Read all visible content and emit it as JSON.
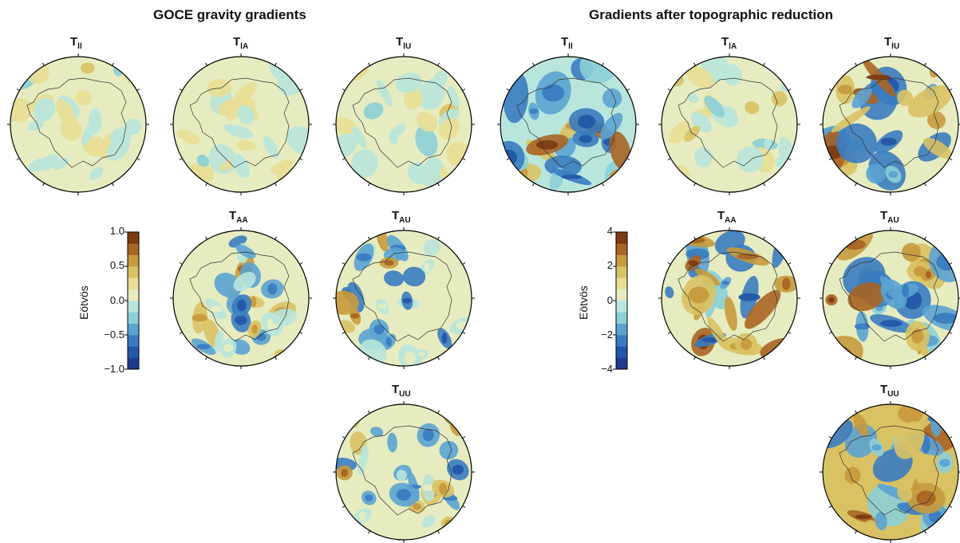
{
  "figure": {
    "left_title": "GOCE gravity gradients",
    "right_title": "Gradients after topographic reduction"
  },
  "chart_data": {
    "type": "heatmap",
    "panels": [
      {
        "name": "GOCE gravity gradients",
        "colorbar": {
          "label": "Eötvös",
          "range": [
            -1.0,
            1.0
          ],
          "ticks": [
            "1.0",
            "0.5",
            "0.0",
            "−0.5",
            "−1.0"
          ]
        },
        "components": [
          {
            "main": "T",
            "sub": "ll"
          },
          {
            "main": "T",
            "sub": "lA"
          },
          {
            "main": "T",
            "sub": "lU"
          },
          {
            "main": "T",
            "sub": "AA"
          },
          {
            "main": "T",
            "sub": "AU"
          },
          {
            "main": "T",
            "sub": "UU"
          }
        ]
      },
      {
        "name": "Gradients after topographic reduction",
        "colorbar": {
          "label": "Eötvös",
          "range": [
            -4,
            4
          ],
          "ticks": [
            "4",
            "2",
            "0",
            "−2",
            "−4"
          ]
        },
        "components": [
          {
            "main": "T",
            "sub": "ll"
          },
          {
            "main": "T",
            "sub": "lA"
          },
          {
            "main": "T",
            "sub": "lU"
          },
          {
            "main": "T",
            "sub": "AA"
          },
          {
            "main": "T",
            "sub": "AU"
          },
          {
            "main": "T",
            "sub": "UU"
          }
        ]
      }
    ],
    "colormap": [
      "#1f3a8a",
      "#2457a8",
      "#3a7cc1",
      "#5ba3d1",
      "#8ccfd6",
      "#b8e6dc",
      "#e6ecbf",
      "#e8de95",
      "#d9c264",
      "#c79a3d",
      "#a86523",
      "#7e3a12"
    ],
    "projection": "polar stereographic (south pole), Antarctica coastline overlay"
  }
}
